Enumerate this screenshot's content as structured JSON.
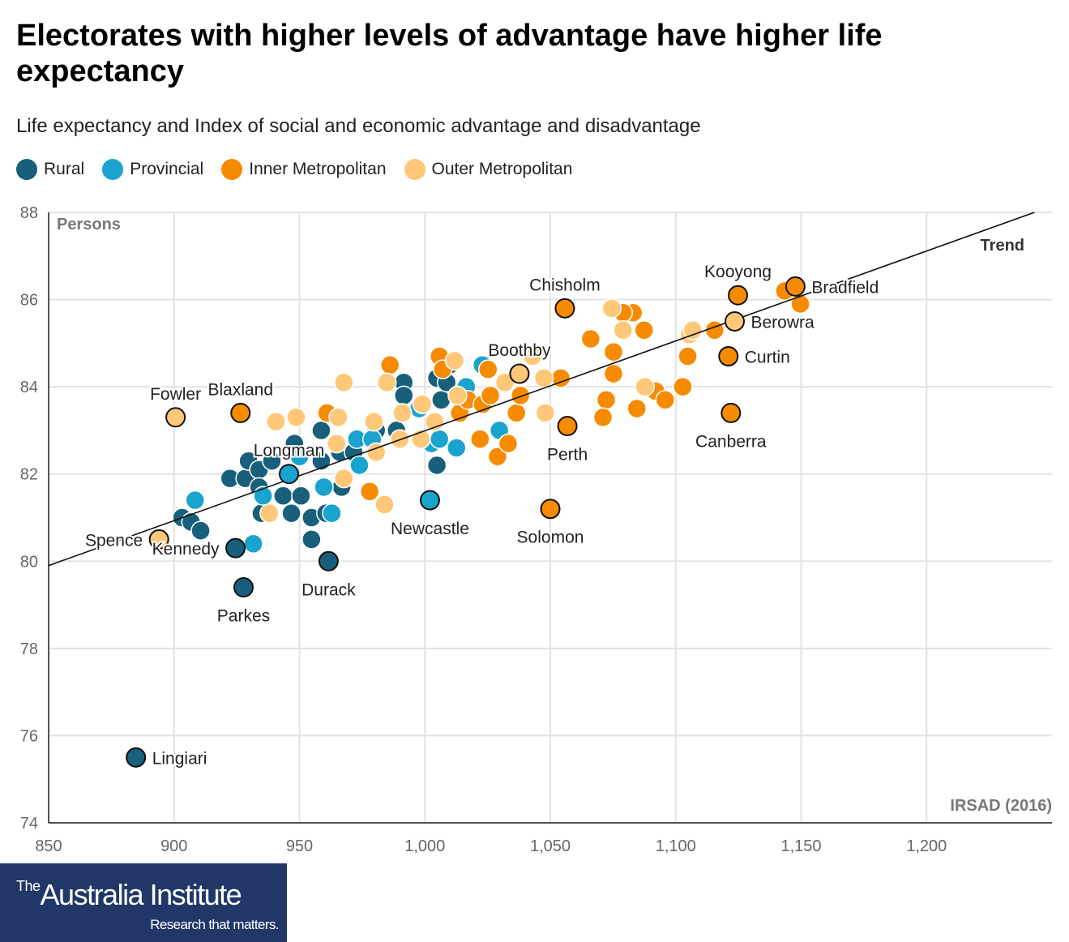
{
  "title": "Electorates with higher levels of advantage have higher life expectancy",
  "subtitle": "Life expectancy and Index of social and economic advantage and disadvantage",
  "logo": {
    "prefix": "The",
    "name": "Australia Institute",
    "tagline": "Research that matters."
  },
  "chart_data": {
    "type": "scatter",
    "xlabel": "IRSAD (2016)",
    "ylabel": "Persons",
    "xlim": [
      850,
      1250
    ],
    "ylim": [
      74,
      88
    ],
    "xticks": [
      850,
      900,
      950,
      1000,
      1050,
      1100,
      1150,
      1200
    ],
    "xtick_labels": [
      "850",
      "900",
      "950",
      "1,000",
      "1,050",
      "1,100",
      "1,150",
      "1,200"
    ],
    "yticks": [
      74,
      76,
      78,
      80,
      82,
      84,
      86,
      88
    ],
    "ytick_labels": [
      "74",
      "76",
      "78",
      "80",
      "82",
      "84",
      "86",
      "88"
    ],
    "grid": true,
    "legend_placement": "top-left",
    "trend": {
      "label": "Trend",
      "from": [
        850,
        79.9
      ],
      "to": [
        1243,
        88.0
      ]
    },
    "series": [
      {
        "name": "Rural",
        "color": "#175f7b",
        "points": [
          [
            903.2,
            81.0
          ],
          [
            906.8,
            80.9
          ],
          [
            910.6,
            80.7
          ],
          [
            922.3,
            81.9
          ],
          [
            928.4,
            81.9
          ],
          [
            929.7,
            82.3
          ],
          [
            933.9,
            82.1
          ],
          [
            933.9,
            81.7
          ],
          [
            934.8,
            81.1
          ],
          [
            939,
            82.3
          ],
          [
            943.5,
            81.5
          ],
          [
            946.8,
            81.1
          ],
          [
            948,
            82.7
          ],
          [
            950.6,
            81.5
          ],
          [
            954.8,
            81.0
          ],
          [
            954.8,
            80.5
          ],
          [
            958.7,
            83.0
          ],
          [
            958.7,
            82.3
          ],
          [
            960.6,
            81.1
          ],
          [
            966.1,
            82.5
          ],
          [
            966.8,
            81.7
          ],
          [
            971.6,
            82.5
          ],
          [
            980.6,
            83.0
          ],
          [
            988.7,
            83.0
          ],
          [
            991.6,
            84.1
          ],
          [
            991.6,
            83.8
          ],
          [
            1004.8,
            84.2
          ],
          [
            1006.5,
            83.7
          ],
          [
            1008.7,
            84.1
          ],
          [
            1009.7,
            84.5
          ],
          [
            1004.8,
            82.2
          ]
        ]
      },
      {
        "name": "Provincial",
        "color": "#1ba3cf",
        "points": [
          [
            908.4,
            81.4
          ],
          [
            931.6,
            80.4
          ],
          [
            935.5,
            81.5
          ],
          [
            950,
            82.4
          ],
          [
            959.7,
            81.7
          ],
          [
            962.9,
            81.1
          ],
          [
            972.9,
            82.8
          ],
          [
            973.9,
            82.2
          ],
          [
            979,
            82.8
          ],
          [
            997.7,
            83.5
          ],
          [
            1002.6,
            82.7
          ],
          [
            1005.8,
            82.8
          ],
          [
            1012.6,
            82.6
          ],
          [
            1016.5,
            84.0
          ],
          [
            1022.9,
            84.5
          ],
          [
            1029.7,
            83.0
          ]
        ]
      },
      {
        "name": "Inner Metropolitan",
        "color": "#f78b00",
        "points": [
          [
            961,
            83.4
          ],
          [
            978,
            81.6
          ],
          [
            986.1,
            84.5
          ],
          [
            1005.8,
            84.7
          ],
          [
            1007.1,
            84.4
          ],
          [
            1013.9,
            83.4
          ],
          [
            1017.1,
            83.7
          ],
          [
            1022,
            82.8
          ],
          [
            1023,
            83.6
          ],
          [
            1025.2,
            84.4
          ],
          [
            1026.1,
            83.8
          ],
          [
            1029,
            82.4
          ],
          [
            1033.2,
            82.7
          ],
          [
            1036.5,
            83.4
          ],
          [
            1038.1,
            83.8
          ],
          [
            1054.2,
            84.2
          ],
          [
            1066.1,
            85.1
          ],
          [
            1075.2,
            84.8
          ],
          [
            1075.2,
            84.3
          ],
          [
            1072.3,
            83.7
          ],
          [
            1071,
            83.3
          ],
          [
            1083,
            85.7
          ],
          [
            1079,
            85.7
          ],
          [
            1087.4,
            85.3
          ],
          [
            1084.5,
            83.5
          ],
          [
            1092,
            83.9
          ],
          [
            1095.8,
            83.7
          ],
          [
            1102.8,
            84.0
          ],
          [
            1104.8,
            84.7
          ],
          [
            1115.5,
            85.3
          ],
          [
            1143.5,
            86.2
          ],
          [
            1149.7,
            85.9
          ]
        ]
      },
      {
        "name": "Outer Metropolitan",
        "color": "#ffc878",
        "points": [
          [
            940.6,
            83.2
          ],
          [
            948.7,
            83.3
          ],
          [
            967.7,
            84.1
          ],
          [
            965.5,
            83.3
          ],
          [
            964.8,
            82.7
          ],
          [
            967.7,
            81.9
          ],
          [
            938,
            81.1
          ],
          [
            979.7,
            83.2
          ],
          [
            980.6,
            82.5
          ],
          [
            983.9,
            81.3
          ],
          [
            984.8,
            84.1
          ],
          [
            990,
            82.8
          ],
          [
            991,
            83.4
          ],
          [
            998.4,
            82.8
          ],
          [
            999,
            83.6
          ],
          [
            1003.9,
            83.2
          ],
          [
            1011.9,
            84.6
          ],
          [
            1013,
            83.8
          ],
          [
            1031.9,
            84.1
          ],
          [
            1042.9,
            84.7
          ],
          [
            1047.4,
            84.2
          ],
          [
            1048,
            83.4
          ],
          [
            1074.5,
            85.8
          ],
          [
            1079,
            85.3
          ],
          [
            1087.7,
            84.0
          ],
          [
            1105.5,
            85.2
          ],
          [
            1106.8,
            85.3
          ]
        ]
      }
    ],
    "annotated": [
      {
        "label": "Lingiari",
        "series": "Rural",
        "x": 884.8,
        "y": 75.5,
        "label_side": "right"
      },
      {
        "label": "Fowler",
        "series": "Outer Metropolitan",
        "x": 900.6,
        "y": 83.3,
        "label_side": "above"
      },
      {
        "label": "Blaxland",
        "series": "Inner Metropolitan",
        "x": 926.5,
        "y": 83.4,
        "label_side": "above"
      },
      {
        "label": "Spence",
        "series": "Outer Metropolitan",
        "x": 894,
        "y": 80.5,
        "label_side": "left"
      },
      {
        "label": "Kennedy",
        "series": "Rural",
        "x": 924.5,
        "y": 80.3,
        "label_side": "left"
      },
      {
        "label": "Parkes",
        "series": "Rural",
        "x": 927.7,
        "y": 79.4,
        "label_side": "below"
      },
      {
        "label": "Durack",
        "series": "Rural",
        "x": 961.6,
        "y": 80.0,
        "label_side": "below"
      },
      {
        "label": "Longman",
        "series": "Provincial",
        "x": 945.8,
        "y": 82.0,
        "label_side": "above"
      },
      {
        "label": "Newcastle",
        "series": "Provincial",
        "x": 1002,
        "y": 81.4,
        "label_side": "below"
      },
      {
        "label": "Solomon",
        "series": "Inner Metropolitan",
        "x": 1050,
        "y": 81.2,
        "label_side": "below"
      },
      {
        "label": "Perth",
        "series": "Inner Metropolitan",
        "x": 1056.8,
        "y": 83.1,
        "label_side": "below"
      },
      {
        "label": "Boothby",
        "series": "Outer Metropolitan",
        "x": 1037.7,
        "y": 84.3,
        "label_side": "above"
      },
      {
        "label": "Chisholm",
        "series": "Inner Metropolitan",
        "x": 1055.8,
        "y": 85.8,
        "label_side": "above"
      },
      {
        "label": "Kooyong",
        "series": "Inner Metropolitan",
        "x": 1124.8,
        "y": 86.1,
        "label_side": "above"
      },
      {
        "label": "Bradfield",
        "series": "Inner Metropolitan",
        "x": 1147.7,
        "y": 86.3,
        "label_side": "right"
      },
      {
        "label": "Berowra",
        "series": "Outer Metropolitan",
        "x": 1123.5,
        "y": 85.5,
        "label_side": "right"
      },
      {
        "label": "Curtin",
        "series": "Inner Metropolitan",
        "x": 1121,
        "y": 84.7,
        "label_side": "right"
      },
      {
        "label": "Canberra",
        "series": "Inner Metropolitan",
        "x": 1122,
        "y": 83.4,
        "label_side": "below"
      }
    ]
  }
}
